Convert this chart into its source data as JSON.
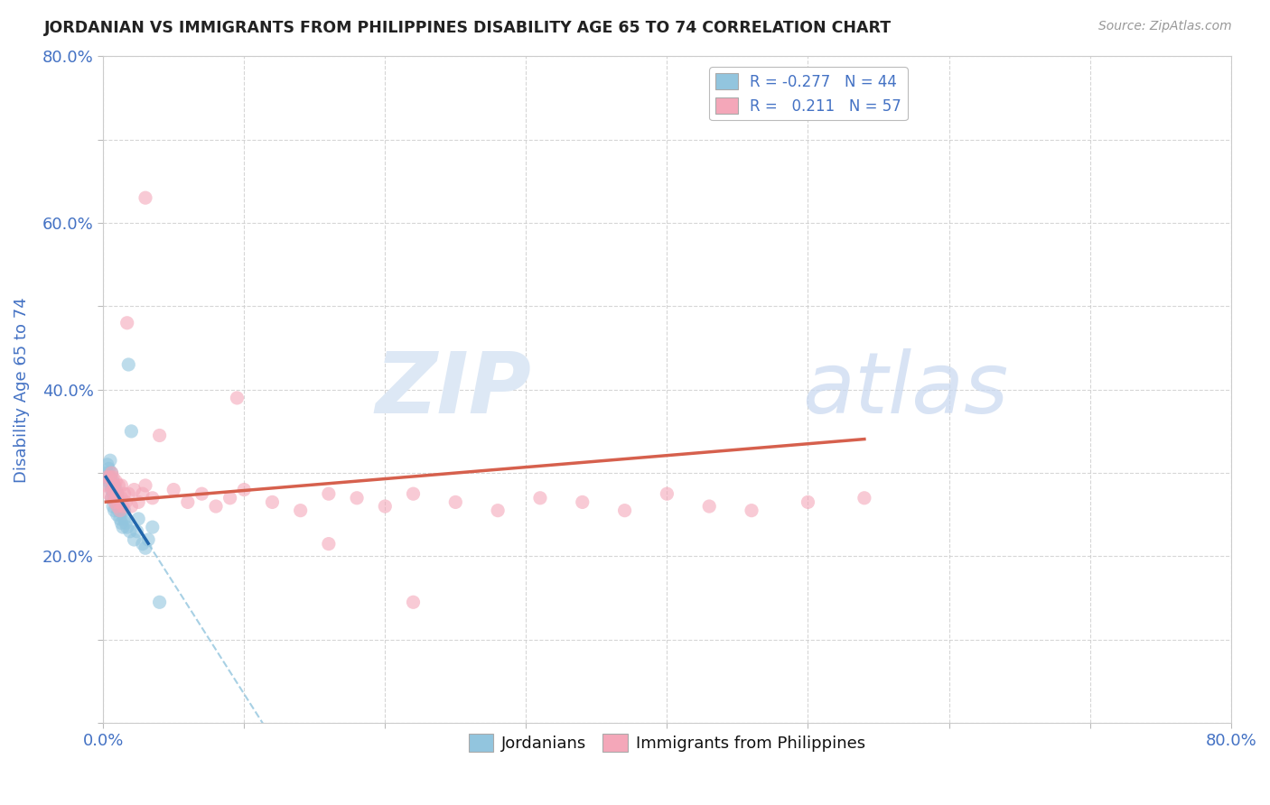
{
  "title": "JORDANIAN VS IMMIGRANTS FROM PHILIPPINES DISABILITY AGE 65 TO 74 CORRELATION CHART",
  "source_text": "Source: ZipAtlas.com",
  "ylabel": "Disability Age 65 to 74",
  "xlim": [
    0.0,
    0.8
  ],
  "ylim": [
    0.0,
    0.8
  ],
  "blue_color": "#92c5de",
  "pink_color": "#f4a7b9",
  "blue_line_color": "#2166ac",
  "pink_line_color": "#d6604d",
  "dash_color": "#92c5de",
  "text_color": "#4472c4",
  "background_color": "#ffffff",
  "watermark_color": "#dde8f5",
  "jordanians_x": [
    0.002,
    0.003,
    0.003,
    0.004,
    0.004,
    0.005,
    0.005,
    0.005,
    0.006,
    0.006,
    0.006,
    0.007,
    0.007,
    0.007,
    0.008,
    0.008,
    0.008,
    0.009,
    0.009,
    0.01,
    0.01,
    0.01,
    0.011,
    0.011,
    0.012,
    0.012,
    0.013,
    0.013,
    0.014,
    0.015,
    0.015,
    0.016,
    0.017,
    0.018,
    0.019,
    0.02,
    0.022,
    0.024,
    0.025,
    0.028,
    0.03,
    0.032,
    0.035,
    0.04
  ],
  "jordanians_y": [
    0.295,
    0.3,
    0.31,
    0.29,
    0.305,
    0.285,
    0.295,
    0.315,
    0.27,
    0.28,
    0.3,
    0.26,
    0.275,
    0.29,
    0.255,
    0.27,
    0.285,
    0.265,
    0.28,
    0.25,
    0.26,
    0.275,
    0.255,
    0.265,
    0.245,
    0.26,
    0.24,
    0.255,
    0.235,
    0.245,
    0.255,
    0.24,
    0.235,
    0.43,
    0.23,
    0.35,
    0.22,
    0.23,
    0.245,
    0.215,
    0.21,
    0.22,
    0.235,
    0.145
  ],
  "philippines_x": [
    0.002,
    0.003,
    0.004,
    0.005,
    0.006,
    0.006,
    0.007,
    0.007,
    0.008,
    0.008,
    0.009,
    0.009,
    0.01,
    0.01,
    0.011,
    0.011,
    0.012,
    0.013,
    0.013,
    0.014,
    0.015,
    0.016,
    0.017,
    0.018,
    0.02,
    0.022,
    0.025,
    0.028,
    0.03,
    0.035,
    0.04,
    0.05,
    0.06,
    0.07,
    0.08,
    0.09,
    0.1,
    0.12,
    0.14,
    0.16,
    0.18,
    0.2,
    0.22,
    0.25,
    0.28,
    0.31,
    0.34,
    0.37,
    0.4,
    0.43,
    0.46,
    0.5,
    0.54,
    0.22,
    0.16,
    0.095,
    0.03
  ],
  "philippines_y": [
    0.285,
    0.295,
    0.275,
    0.295,
    0.3,
    0.27,
    0.28,
    0.295,
    0.265,
    0.285,
    0.27,
    0.29,
    0.26,
    0.275,
    0.265,
    0.285,
    0.255,
    0.27,
    0.285,
    0.26,
    0.275,
    0.265,
    0.48,
    0.275,
    0.26,
    0.28,
    0.265,
    0.275,
    0.285,
    0.27,
    0.345,
    0.28,
    0.265,
    0.275,
    0.26,
    0.27,
    0.28,
    0.265,
    0.255,
    0.275,
    0.27,
    0.26,
    0.275,
    0.265,
    0.255,
    0.27,
    0.265,
    0.255,
    0.275,
    0.26,
    0.255,
    0.265,
    0.27,
    0.145,
    0.215,
    0.39,
    0.63
  ],
  "pink_line_x": [
    0.002,
    0.54
  ],
  "pink_line_y_intercept": 0.265,
  "pink_line_slope": 0.14
}
